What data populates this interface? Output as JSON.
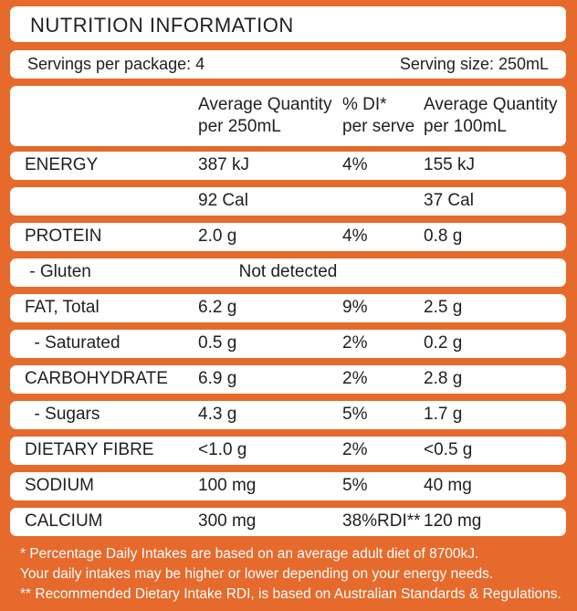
{
  "title": "NUTRITION INFORMATION",
  "servings_per_package": "Servings per package: 4",
  "serving_size": "Serving size: 250mL",
  "headers": {
    "col_a_line1": "Average Quantity",
    "col_a_line2": "per 250mL",
    "col_b_line1": "% DI*",
    "col_b_line2": "per serve",
    "col_c_line1": "Average Quantity",
    "col_c_line2": "per 100mL"
  },
  "rows": [
    {
      "label": "ENERGY",
      "a": "387 kJ",
      "b": "4%",
      "c": "155 kJ"
    },
    {
      "label": "",
      "a": "92 Cal",
      "b": "",
      "c": "37 Cal"
    },
    {
      "label": "PROTEIN",
      "a": "2.0 g",
      "b": "4%",
      "c": "0.8 g"
    },
    {
      "label": " - Gluten",
      "span": "Not detected"
    },
    {
      "label": "FAT, Total",
      "a": "6.2 g",
      "b": "9%",
      "c": "2.5 g"
    },
    {
      "label": "  - Saturated",
      "a": "0.5 g",
      "b": "2%",
      "c": "0.2 g"
    },
    {
      "label": "CARBOHYDRATE",
      "a": "6.9 g",
      "b": "2%",
      "c": "2.8 g"
    },
    {
      "label": "  - Sugars",
      "a": "4.3 g",
      "b": "5%",
      "c": "1.7 g"
    },
    {
      "label": "DIETARY FIBRE",
      "a": "<1.0 g",
      "b": "2%",
      "c": "<0.5 g"
    },
    {
      "label": "SODIUM",
      "a": "100 mg",
      "b": "5%",
      "c": "40 mg"
    },
    {
      "label": "CALCIUM",
      "a": "300 mg",
      "b": "38%RDI**",
      "c": "120 mg"
    }
  ],
  "footnotes": [
    "* Percentage Daily Intakes are based on an average adult diet of 8700kJ.",
    "Your daily intakes may be higher or lower depending on your energy needs.",
    "** Recommended Dietary Intake RDI, is based on Australian Standards & Regulations."
  ],
  "colors": {
    "background": "#e66a2c",
    "panel": "#ffffff",
    "text": "#1f1f1f",
    "footnote_text": "#ffffff"
  }
}
